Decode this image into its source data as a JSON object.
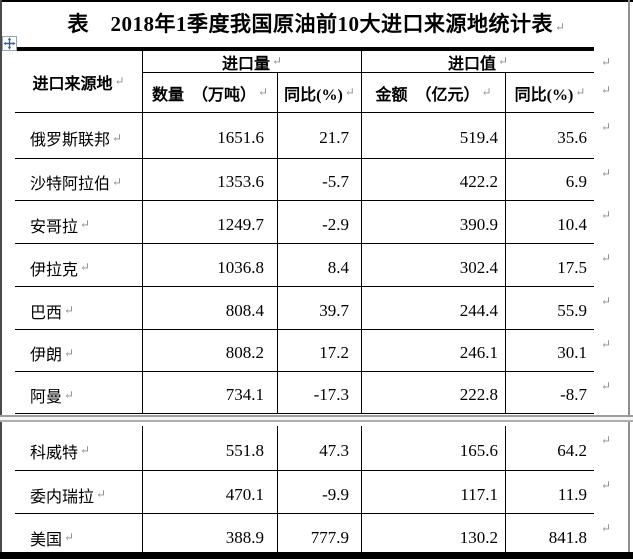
{
  "title": "表　2018年1季度我国原油前10大进口来源地统计表",
  "glyphs": {
    "pilcrow": "↵"
  },
  "icons": {
    "move_handle": "table-move-handle"
  },
  "colors": {
    "border": "#000000",
    "mark_grey": "#8f8f8f",
    "page_break_grey": "#9c9c9c",
    "handle_blue": "#3d5e9e"
  },
  "table": {
    "header": {
      "source": "进口来源地",
      "volume_group": "进口量",
      "value_group": "进口值",
      "qty": "数量　（万吨）",
      "qty_yoy": "同比(%)",
      "amount": "金额　（亿元）",
      "amount_yoy": "同比(%)"
    },
    "rows_part1": [
      {
        "name": "俄罗斯联邦",
        "qty": "1651.6",
        "qty_yoy": "21.7",
        "amount": "519.4",
        "amount_yoy": "35.6"
      },
      {
        "name": "沙特阿拉伯",
        "qty": "1353.6",
        "qty_yoy": "-5.7",
        "amount": "422.2",
        "amount_yoy": "6.9"
      },
      {
        "name": "安哥拉",
        "qty": "1249.7",
        "qty_yoy": "-2.9",
        "amount": "390.9",
        "amount_yoy": "10.4"
      },
      {
        "name": "伊拉克",
        "qty": "1036.8",
        "qty_yoy": "8.4",
        "amount": "302.4",
        "amount_yoy": "17.5"
      },
      {
        "name": "巴西",
        "qty": "808.4",
        "qty_yoy": "39.7",
        "amount": "244.4",
        "amount_yoy": "55.9"
      },
      {
        "name": "伊朗",
        "qty": "808.2",
        "qty_yoy": "17.2",
        "amount": "246.1",
        "amount_yoy": "30.1"
      },
      {
        "name": "阿曼",
        "qty": "734.1",
        "qty_yoy": "-17.3",
        "amount": "222.8",
        "amount_yoy": "-8.7"
      }
    ],
    "rows_part2": [
      {
        "name": "科威特",
        "qty": "551.8",
        "qty_yoy": "47.3",
        "amount": "165.6",
        "amount_yoy": "64.2"
      },
      {
        "name": "委内瑞拉",
        "qty": "470.1",
        "qty_yoy": "-9.9",
        "amount": "117.1",
        "amount_yoy": "11.9"
      },
      {
        "name": "美国",
        "qty": "388.9",
        "qty_yoy": "777.9",
        "amount": "130.2",
        "amount_yoy": "841.8"
      }
    ]
  }
}
